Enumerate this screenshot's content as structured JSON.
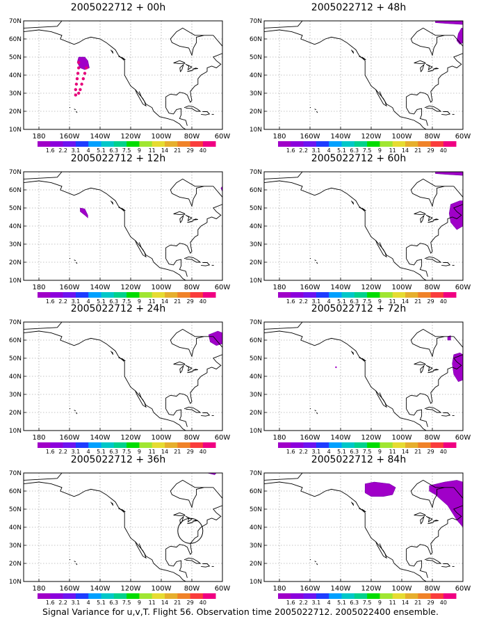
{
  "colors": {
    "colorbar": [
      "#a000c8",
      "#8c00dc",
      "#6e14f0",
      "#1e3cff",
      "#00a0ff",
      "#00c8c8",
      "#00d28c",
      "#00dc00",
      "#a0e632",
      "#e6dc32",
      "#e6af2d",
      "#f08228",
      "#fa3c3c",
      "#f00082"
    ],
    "variance_fill": "#a000c8",
    "obs_points": "#e6007a",
    "grid": "#888888",
    "coast": "#000000"
  },
  "map": {
    "lat_labels": [
      "10N",
      "20N",
      "30N",
      "40N",
      "50N",
      "60N",
      "70N"
    ],
    "lon_labels": [
      "180",
      "160W",
      "140W",
      "120W",
      "100W",
      "80W",
      "60W"
    ],
    "colorbar_labels": [
      "1.6",
      "2.2",
      "3.1",
      "4",
      "5.1",
      "6.3",
      "7.5",
      "9",
      "11",
      "14",
      "21",
      "29",
      "40"
    ]
  },
  "panels": [
    {
      "title": "2005022712 + 00h",
      "features": [
        "obs_track"
      ]
    },
    {
      "title": "2005022712 + 48h",
      "features": [
        "ne_blob_small",
        "top_right_blob"
      ]
    },
    {
      "title": "2005022712 + 12h",
      "features": [
        "pac_small_blob",
        "edge_blob_tiny"
      ]
    },
    {
      "title": "2005022712 + 60h",
      "features": [
        "ne_blob_large",
        "top_right_blob"
      ]
    },
    {
      "title": "2005022712 + 24h",
      "features": [
        "nf_blob"
      ]
    },
    {
      "title": "2005022712 + 72h",
      "features": [
        "ne_blob_mid",
        "tiny_dot",
        "nf_dot"
      ]
    },
    {
      "title": "2005022712 + 36h",
      "features": [
        "top_right_tiny",
        "circle"
      ]
    },
    {
      "title": "2005022712 + 84h",
      "features": [
        "big_blob_center",
        "ne_blob_84"
      ]
    }
  ],
  "caption": "Signal Variance for u,v,T. Flight 56. Observation time 2005022712. 2005022400 ensemble."
}
